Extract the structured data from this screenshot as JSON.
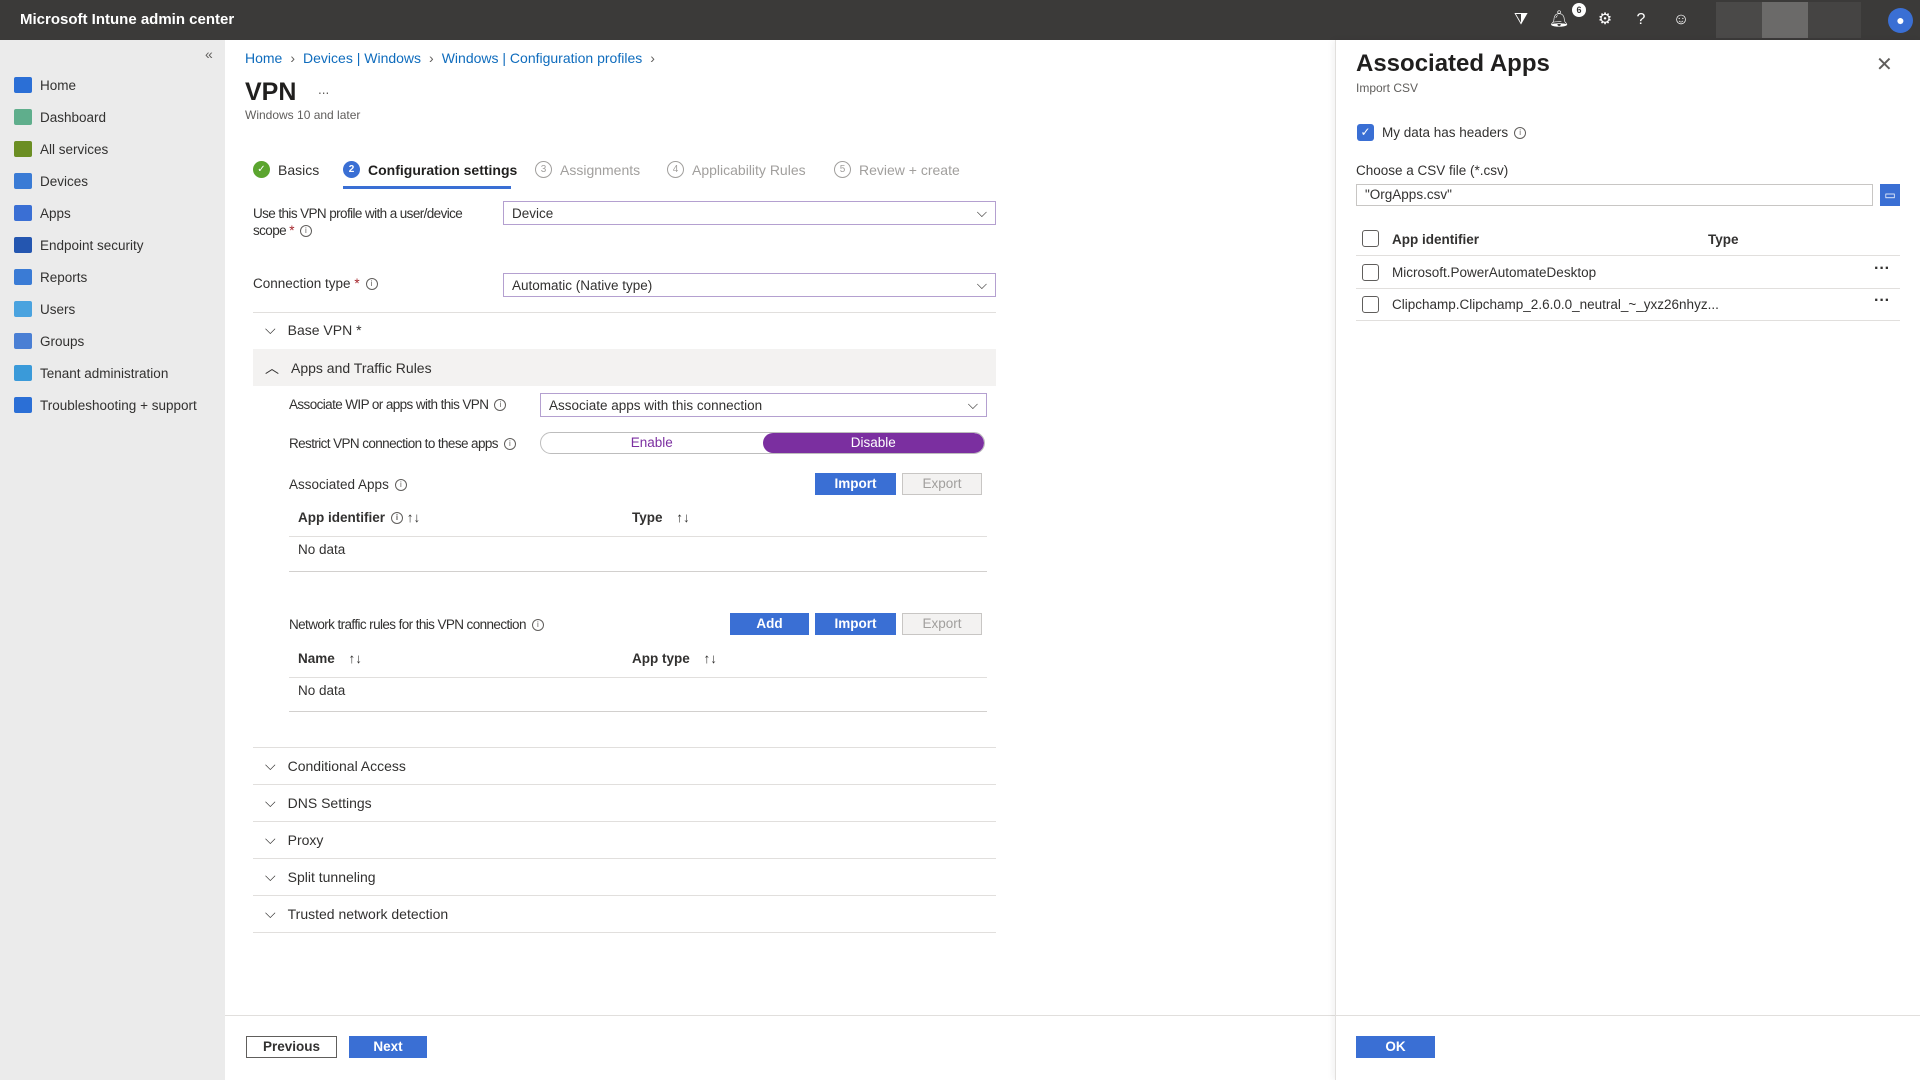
{
  "topbar": {
    "title": "Microsoft Intune admin center",
    "notification_count": "6",
    "icons": [
      "feedback-filter-icon",
      "bell-icon",
      "gear-icon",
      "help-icon",
      "feedback-person-icon",
      "avatar-icon"
    ]
  },
  "sidebar": {
    "collapse": "«",
    "items": [
      {
        "label": "Home",
        "icon": "home-icon"
      },
      {
        "label": "Dashboard",
        "icon": "dashboard-icon"
      },
      {
        "label": "All services",
        "icon": "list-icon"
      },
      {
        "label": "Devices",
        "icon": "devices-icon"
      },
      {
        "label": "Apps",
        "icon": "apps-icon"
      },
      {
        "label": "Endpoint security",
        "icon": "shield-icon"
      },
      {
        "label": "Reports",
        "icon": "reports-icon"
      },
      {
        "label": "Users",
        "icon": "user-icon"
      },
      {
        "label": "Groups",
        "icon": "groups-icon"
      },
      {
        "label": "Tenant administration",
        "icon": "tenant-icon"
      },
      {
        "label": "Troubleshooting + support",
        "icon": "tools-icon"
      }
    ]
  },
  "breadcrumb": [
    "Home",
    "Devices | Windows",
    "Windows | Configuration profiles"
  ],
  "page": {
    "title": "VPN",
    "more": "...",
    "subtitle": "Windows 10 and later"
  },
  "tabs": [
    {
      "num": "✓",
      "label": "Basics"
    },
    {
      "num": "2",
      "label": "Configuration settings"
    },
    {
      "num": "3",
      "label": "Assignments"
    },
    {
      "num": "4",
      "label": "Applicability Rules"
    },
    {
      "num": "5",
      "label": "Review + create"
    }
  ],
  "form": {
    "scope_label": "Use this VPN profile with a user/device",
    "scope_label2": "scope",
    "scope_value": "Device",
    "conn_label": "Connection type",
    "conn_value": "Automatic (Native type)",
    "required": "*",
    "base_vpn": "Base VPN",
    "apps_rules": "Apps and Traffic Rules",
    "wip_label": "Associate WIP or apps with this VPN",
    "wip_value": "Associate apps with this connection",
    "restrict_label": "Restrict VPN connection to these apps",
    "enable": "Enable",
    "disable": "Disable",
    "restrict_selected": "Disable",
    "assoc_label": "Associated Apps",
    "import": "Import",
    "export": "Export",
    "add": "Add",
    "assoc_cols": [
      "App identifier",
      "Type"
    ],
    "no_data": "No data",
    "traffic_label": "Network traffic rules for this VPN connection",
    "traffic_cols": [
      "Name",
      "App type"
    ],
    "sections": [
      "Conditional Access",
      "DNS Settings",
      "Proxy",
      "Split tunneling",
      "Trusted network detection"
    ]
  },
  "footer": {
    "previous": "Previous",
    "next": "Next"
  },
  "panel": {
    "title": "Associated Apps",
    "subtitle": "Import CSV",
    "headers_label": "My data has headers",
    "headers_checked": true,
    "file_label": "Choose a CSV file (*.csv)",
    "file_value": "\"OrgApps.csv\"",
    "cols": [
      "App identifier",
      "Type"
    ],
    "rows": [
      {
        "id": "Microsoft.PowerAutomateDesktop",
        "type": ""
      },
      {
        "id": "Clipchamp.Clipchamp_2.6.0.0_neutral_~_yxz26nhyz...",
        "type": ""
      }
    ],
    "ok": "OK"
  },
  "colors": {
    "accent": "#3a6fd4",
    "toggle": "#7b2fa0",
    "topbar": "#3b3a39"
  }
}
